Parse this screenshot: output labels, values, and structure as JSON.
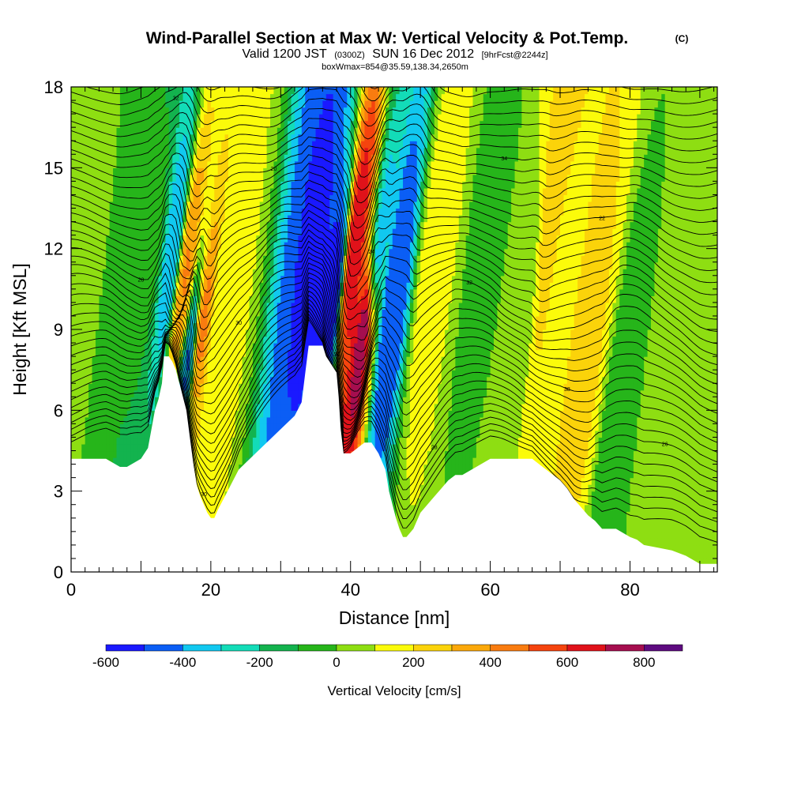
{
  "title": {
    "main": "Wind-Parallel Section at Max W: Vertical Velocity & Pot.Temp.",
    "copyright": "(C)",
    "valid_prefix": "Valid 1200 JST",
    "valid_zulu": "(0300Z)",
    "valid_date": "SUN 16 Dec 2012",
    "forecast": "[9hrFcst@2244z]",
    "box": "boxWmax=854@35.59,138.34,2650m"
  },
  "colors": {
    "palette": [
      "#1a19ff",
      "#0b5ef5",
      "#11c8f0",
      "#13dcb8",
      "#13b34e",
      "#26b51a",
      "#8ede12",
      "#fbfb0a",
      "#fbd30a",
      "#fba80a",
      "#f97c10",
      "#f5440e",
      "#e0121a",
      "#a50e4f",
      "#5e0b80"
    ],
    "background_terrain": "#ffffff",
    "contour": "#000000"
  },
  "chart_data": {
    "type": "heatmap",
    "subtype": "vertical cross-section with potential temperature contours",
    "xlabel": "Distance [nm]",
    "ylabel": "Height [Kft MSL]",
    "xlim": [
      0,
      92.5
    ],
    "ylim": [
      0,
      18
    ],
    "x_ticks": [
      0,
      20,
      40,
      60,
      80
    ],
    "y_ticks": [
      0,
      3,
      6,
      9,
      12,
      15,
      18
    ],
    "colorbar": {
      "title": "Vertical Velocity [cm/s]",
      "levels": [
        -600,
        -500,
        -400,
        -300,
        -200,
        -100,
        0,
        100,
        200,
        300,
        400,
        500,
        600,
        700,
        800,
        900
      ],
      "tick_values": [
        -600,
        -400,
        -200,
        0,
        200,
        400,
        600,
        800
      ]
    },
    "terrain": {
      "x": [
        0,
        5,
        7,
        8,
        10,
        11,
        11.5,
        12,
        12.5,
        13,
        13.3,
        14,
        14.5,
        15,
        15.5,
        16,
        16.5,
        17,
        17.5,
        18,
        18.5,
        19,
        19.5,
        20,
        20.5,
        21,
        22,
        23,
        24,
        26,
        28,
        30,
        32,
        33,
        34,
        36,
        36.5,
        37,
        37.5,
        38,
        38.3,
        38.6,
        39,
        40,
        42,
        43,
        44,
        45,
        45.5,
        46,
        46.5,
        47,
        47.5,
        48,
        49,
        49.5,
        50,
        51,
        52,
        53,
        54,
        55,
        56,
        58,
        60,
        62,
        64,
        66,
        67,
        68,
        69,
        70,
        71,
        72,
        73,
        74,
        75,
        76,
        78,
        80,
        81,
        82,
        84,
        86,
        88,
        90,
        92.5
      ],
      "y": [
        4.2,
        4.2,
        3.9,
        3.9,
        4.2,
        4.6,
        5.3,
        6.0,
        6.4,
        7.0,
        8.0,
        8.0,
        7.8,
        7.5,
        7.0,
        6.5,
        6.0,
        5.0,
        4.0,
        3.2,
        2.8,
        2.5,
        2.2,
        2.0,
        2.0,
        2.3,
        2.8,
        3.3,
        3.8,
        4.3,
        4.8,
        5.3,
        5.8,
        6.3,
        8.4,
        8.4,
        8.0,
        7.8,
        7.6,
        7.4,
        6.5,
        5.3,
        4.4,
        4.4,
        4.8,
        4.8,
        4.4,
        3.8,
        3.0,
        2.5,
        2.0,
        1.6,
        1.3,
        1.3,
        1.6,
        1.9,
        2.2,
        2.5,
        2.8,
        3.1,
        3.4,
        3.6,
        3.6,
        3.9,
        4.2,
        4.2,
        4.2,
        4.2,
        4.0,
        3.8,
        3.6,
        3.4,
        3.1,
        2.7,
        2.4,
        2.1,
        1.9,
        1.6,
        1.6,
        1.3,
        1.2,
        1.0,
        0.9,
        0.8,
        0.6,
        0.3,
        0.3
      ]
    },
    "vertical_velocity_features": [
      {
        "x": 0,
        "y": 10,
        "w_cm_s": 20
      },
      {
        "x": 12,
        "y": 12,
        "w_cm_s": -80
      },
      {
        "x": 14.5,
        "y": 12,
        "w_cm_s": -380
      },
      {
        "x": 16.5,
        "y": 11,
        "w_cm_s": 420
      },
      {
        "x": 18.5,
        "y": 9,
        "w_cm_s": 500
      },
      {
        "x": 17,
        "y": 8,
        "w_cm_s": -480
      },
      {
        "x": 21.5,
        "y": 10,
        "w_cm_s": 130
      },
      {
        "x": 35,
        "y": 12,
        "w_cm_s": -520
      },
      {
        "x": 37.5,
        "y": 10,
        "w_cm_s": -580
      },
      {
        "x": 40.5,
        "y": 12,
        "w_cm_s": 700
      },
      {
        "x": 42,
        "y": 9,
        "w_cm_s": 830
      },
      {
        "x": 44,
        "y": 12,
        "w_cm_s": -420
      },
      {
        "x": 46,
        "y": 10,
        "w_cm_s": -500
      },
      {
        "x": 52,
        "y": 12,
        "w_cm_s": 150
      },
      {
        "x": 60,
        "y": 13,
        "w_cm_s": -30
      },
      {
        "x": 65,
        "y": 10,
        "w_cm_s": 40
      },
      {
        "x": 69,
        "y": 14,
        "w_cm_s": 280
      },
      {
        "x": 70,
        "y": 11,
        "w_cm_s": 180
      },
      {
        "x": 74,
        "y": 8,
        "w_cm_s": 220
      },
      {
        "x": 78,
        "y": 5,
        "w_cm_s": -60
      },
      {
        "x": 84,
        "y": 5,
        "w_cm_s": 60
      },
      {
        "x": 89,
        "y": 12,
        "w_cm_s": 20
      }
    ],
    "theta_contours": {
      "label_values": [
        "30",
        "28",
        "26",
        "34",
        "38",
        "30",
        "32",
        "28",
        "24",
        "22",
        "20",
        "34",
        "32",
        "30",
        "28",
        "26",
        "36",
        "30",
        "38",
        "34",
        "32",
        "28",
        "24",
        "22",
        "24",
        "26",
        "30",
        "28",
        "24",
        "22",
        "20"
      ]
    }
  }
}
